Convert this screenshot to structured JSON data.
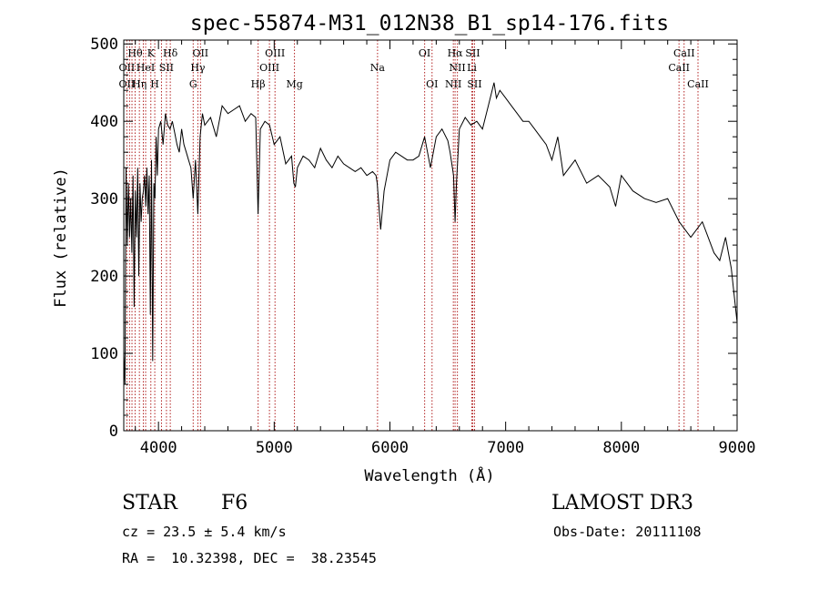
{
  "chart_data": {
    "type": "line",
    "title": "spec-55874-M31_012N38_B1_sp14-176.fits",
    "xlabel": "Wavelength (Å)",
    "ylabel": "Flux (relative)",
    "xlim": [
      3700,
      9000
    ],
    "ylim": [
      0,
      505
    ],
    "xticks": [
      4000,
      5000,
      6000,
      7000,
      8000,
      9000
    ],
    "yticks": [
      0,
      100,
      200,
      300,
      400,
      500
    ],
    "grid": false,
    "series": [
      {
        "name": "flux",
        "x": [
          3700,
          3710,
          3720,
          3730,
          3740,
          3750,
          3760,
          3770,
          3780,
          3790,
          3800,
          3810,
          3820,
          3830,
          3840,
          3850,
          3860,
          3870,
          3880,
          3890,
          3900,
          3910,
          3920,
          3930,
          3940,
          3950,
          3960,
          3970,
          3980,
          3990,
          4000,
          4020,
          4040,
          4060,
          4080,
          4100,
          4120,
          4140,
          4160,
          4180,
          4200,
          4220,
          4240,
          4260,
          4280,
          4300,
          4320,
          4340,
          4360,
          4380,
          4400,
          4450,
          4500,
          4550,
          4600,
          4650,
          4700,
          4750,
          4800,
          4840,
          4861,
          4880,
          4920,
          4960,
          5000,
          5050,
          5100,
          5150,
          5170,
          5183,
          5200,
          5250,
          5300,
          5350,
          5400,
          5450,
          5500,
          5550,
          5600,
          5650,
          5700,
          5750,
          5800,
          5850,
          5880,
          5890,
          5900,
          5920,
          5950,
          6000,
          6050,
          6100,
          6150,
          6200,
          6250,
          6300,
          6350,
          6400,
          6450,
          6500,
          6520,
          6550,
          6563,
          6575,
          6600,
          6650,
          6700,
          6750,
          6800,
          6850,
          6900,
          6920,
          6950,
          7000,
          7050,
          7100,
          7150,
          7200,
          7250,
          7300,
          7350,
          7400,
          7450,
          7500,
          7600,
          7700,
          7800,
          7900,
          7950,
          8000,
          8100,
          8200,
          8300,
          8400,
          8500,
          8600,
          8700,
          8800,
          8850,
          8900,
          8950,
          9000
        ],
        "values": [
          100,
          60,
          340,
          240,
          320,
          250,
          300,
          230,
          330,
          160,
          310,
          250,
          340,
          200,
          320,
          270,
          300,
          310,
          330,
          290,
          340,
          280,
          330,
          150,
          350,
          90,
          320,
          300,
          380,
          330,
          390,
          400,
          370,
          410,
          395,
          390,
          400,
          385,
          370,
          360,
          390,
          370,
          360,
          350,
          340,
          300,
          350,
          280,
          380,
          410,
          395,
          405,
          380,
          420,
          410,
          415,
          420,
          400,
          410,
          405,
          280,
          390,
          400,
          395,
          370,
          380,
          345,
          355,
          320,
          315,
          340,
          355,
          350,
          340,
          365,
          350,
          340,
          355,
          345,
          340,
          335,
          340,
          330,
          335,
          330,
          320,
          300,
          260,
          310,
          350,
          360,
          355,
          350,
          350,
          355,
          380,
          340,
          380,
          390,
          375,
          360,
          330,
          270,
          320,
          390,
          405,
          395,
          400,
          390,
          420,
          450,
          430,
          440,
          430,
          420,
          410,
          400,
          400,
          390,
          380,
          370,
          350,
          380,
          330,
          350,
          320,
          330,
          315,
          290,
          330,
          310,
          300,
          295,
          300,
          270,
          250,
          270,
          230,
          220,
          250,
          210,
          140
        ]
      }
    ],
    "line_groups": [
      {
        "wavelengths": [
          3727,
          3750,
          3771,
          3798,
          3835,
          3869,
          3889,
          3934,
          3968,
          4026,
          4069,
          4102,
          4300,
          4340,
          4363,
          4861,
          4959,
          5007,
          5175,
          5893,
          6300,
          6364,
          6548,
          6563,
          6583,
          6708,
          6716,
          6731,
          8498,
          8542,
          8662
        ]
      }
    ],
    "line_labels": [
      {
        "text": "Hθ",
        "wavelength": 3798,
        "row": 1
      },
      {
        "text": "K",
        "wavelength": 3934,
        "row": 1
      },
      {
        "text": "Hδ",
        "wavelength": 4102,
        "row": 1
      },
      {
        "text": "OII",
        "wavelength": 4363,
        "row": 1
      },
      {
        "text": "OIII",
        "wavelength": 5007,
        "row": 1
      },
      {
        "text": "OI",
        "wavelength": 6300,
        "row": 1
      },
      {
        "text": "Hα",
        "wavelength": 6563,
        "row": 1
      },
      {
        "text": "SII",
        "wavelength": 6716,
        "row": 1
      },
      {
        "text": "CaII",
        "wavelength": 8542,
        "row": 1
      },
      {
        "text": "OII",
        "wavelength": 3727,
        "row": 2
      },
      {
        "text": "HeI",
        "wavelength": 3889,
        "row": 2
      },
      {
        "text": "SII",
        "wavelength": 4069,
        "row": 2
      },
      {
        "text": "Hγ",
        "wavelength": 4340,
        "row": 2
      },
      {
        "text": "OIII",
        "wavelength": 4959,
        "row": 2
      },
      {
        "text": "Na",
        "wavelength": 5893,
        "row": 2
      },
      {
        "text": "NII",
        "wavelength": 6583,
        "row": 2
      },
      {
        "text": "Li",
        "wavelength": 6708,
        "row": 2
      },
      {
        "text": "CaII",
        "wavelength": 8498,
        "row": 2
      },
      {
        "text": "OII",
        "wavelength": 3727,
        "row": 3
      },
      {
        "text": "Hη",
        "wavelength": 3835,
        "row": 3
      },
      {
        "text": "H",
        "wavelength": 3968,
        "row": 3
      },
      {
        "text": "G",
        "wavelength": 4300,
        "row": 3
      },
      {
        "text": "Hβ",
        "wavelength": 4861,
        "row": 3
      },
      {
        "text": "Mg",
        "wavelength": 5175,
        "row": 3
      },
      {
        "text": "OI",
        "wavelength": 6364,
        "row": 3
      },
      {
        "text": "NII",
        "wavelength": 6548,
        "row": 3
      },
      {
        "text": "SII",
        "wavelength": 6731,
        "row": 3
      },
      {
        "text": "CaII",
        "wavelength": 8662,
        "row": 3
      }
    ]
  },
  "info": {
    "class_label": "STAR",
    "subclass": "F6",
    "survey": "LAMOST DR3",
    "cz": "cz = 23.5 ± 5.4 km/s",
    "obs_date": "Obs-Date: 20111108",
    "coords": "RA =  10.32398, DEC =  38.23545"
  },
  "colors": {
    "line_marker": "#b22222",
    "spectrum": "#000000"
  }
}
